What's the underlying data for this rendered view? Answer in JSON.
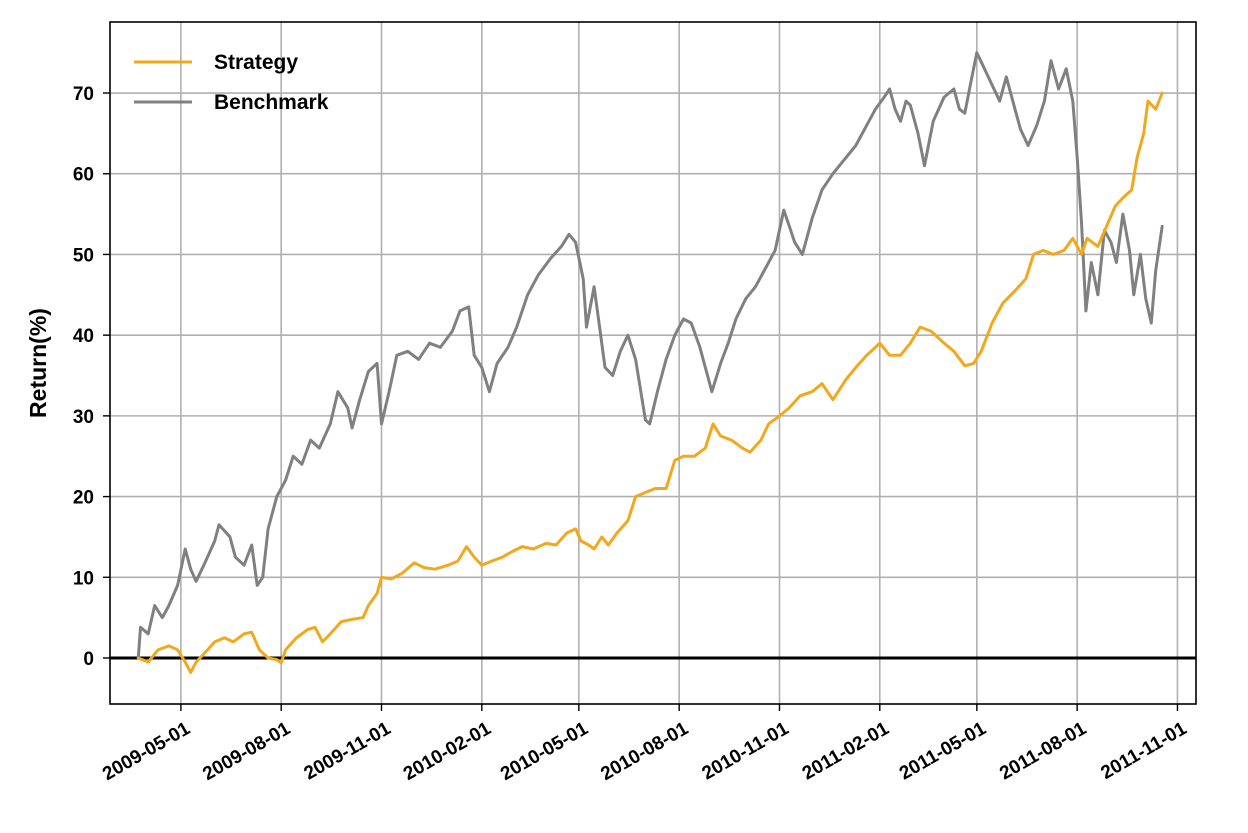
{
  "chart_data": {
    "type": "line",
    "title": "",
    "xlabel": "",
    "ylabel": "Return(%)",
    "grid": true,
    "legend_position": "top-left",
    "x_ticks": [
      "2009-05-01",
      "2009-08-01",
      "2009-11-01",
      "2010-02-01",
      "2010-05-01",
      "2010-08-01",
      "2010-11-01",
      "2011-02-01",
      "2011-05-01",
      "2011-08-01",
      "2011-11-01"
    ],
    "y_ticks": [
      0,
      10,
      20,
      30,
      40,
      50,
      60,
      70
    ],
    "xlim": [
      "2009-02-25",
      "2011-11-18"
    ],
    "ylim": [
      -5.7,
      78.8
    ],
    "reference_line": {
      "y": 0,
      "color": "#000000"
    },
    "series": [
      {
        "name": "Strategy",
        "color": "#f2a81d",
        "points": [
          [
            "2009-03-23",
            0.0
          ],
          [
            "2009-04-01",
            -0.5
          ],
          [
            "2009-04-10",
            1.0
          ],
          [
            "2009-04-20",
            1.5
          ],
          [
            "2009-04-28",
            1.0
          ],
          [
            "2009-05-05",
            -0.5
          ],
          [
            "2009-05-10",
            -1.8
          ],
          [
            "2009-05-15",
            -0.5
          ],
          [
            "2009-05-22",
            0.5
          ],
          [
            "2009-06-01",
            2.0
          ],
          [
            "2009-06-10",
            2.5
          ],
          [
            "2009-06-18",
            2.0
          ],
          [
            "2009-06-28",
            3.0
          ],
          [
            "2009-07-05",
            3.2
          ],
          [
            "2009-07-12",
            1.0
          ],
          [
            "2009-07-20",
            0.0
          ],
          [
            "2009-07-28",
            -0.2
          ],
          [
            "2009-08-01",
            -0.6
          ],
          [
            "2009-08-05",
            1.0
          ],
          [
            "2009-08-15",
            2.5
          ],
          [
            "2009-08-25",
            3.5
          ],
          [
            "2009-09-01",
            3.8
          ],
          [
            "2009-09-08",
            2.0
          ],
          [
            "2009-09-15",
            3.0
          ],
          [
            "2009-09-25",
            4.5
          ],
          [
            "2009-10-05",
            4.8
          ],
          [
            "2009-10-15",
            5.0
          ],
          [
            "2009-10-20",
            6.5
          ],
          [
            "2009-10-28",
            8.0
          ],
          [
            "2009-11-01",
            10.0
          ],
          [
            "2009-11-10",
            9.8
          ],
          [
            "2009-11-20",
            10.5
          ],
          [
            "2009-12-01",
            11.8
          ],
          [
            "2009-12-10",
            11.2
          ],
          [
            "2009-12-20",
            11.0
          ],
          [
            "2010-01-01",
            11.5
          ],
          [
            "2010-01-10",
            12.0
          ],
          [
            "2010-01-18",
            13.8
          ],
          [
            "2010-01-25",
            12.5
          ],
          [
            "2010-02-01",
            11.5
          ],
          [
            "2010-02-10",
            12.0
          ],
          [
            "2010-02-20",
            12.5
          ],
          [
            "2010-03-01",
            13.2
          ],
          [
            "2010-03-10",
            13.8
          ],
          [
            "2010-03-20",
            13.5
          ],
          [
            "2010-04-01",
            14.2
          ],
          [
            "2010-04-10",
            14.0
          ],
          [
            "2010-04-20",
            15.5
          ],
          [
            "2010-04-28",
            16.0
          ],
          [
            "2010-05-03",
            14.5
          ],
          [
            "2010-05-10",
            14.0
          ],
          [
            "2010-05-15",
            13.5
          ],
          [
            "2010-05-22",
            15.0
          ],
          [
            "2010-05-28",
            14.0
          ],
          [
            "2010-06-05",
            15.5
          ],
          [
            "2010-06-15",
            17.0
          ],
          [
            "2010-06-22",
            20.0
          ],
          [
            "2010-07-01",
            20.5
          ],
          [
            "2010-07-10",
            21.0
          ],
          [
            "2010-07-20",
            21.0
          ],
          [
            "2010-07-28",
            24.5
          ],
          [
            "2010-08-05",
            25.0
          ],
          [
            "2010-08-15",
            25.0
          ],
          [
            "2010-08-25",
            26.0
          ],
          [
            "2010-09-01",
            29.0
          ],
          [
            "2010-09-08",
            27.5
          ],
          [
            "2010-09-18",
            27.0
          ],
          [
            "2010-09-28",
            26.0
          ],
          [
            "2010-10-05",
            25.5
          ],
          [
            "2010-10-15",
            27.0
          ],
          [
            "2010-10-22",
            29.0
          ],
          [
            "2010-11-01",
            30.0
          ],
          [
            "2010-11-10",
            31.0
          ],
          [
            "2010-11-20",
            32.5
          ],
          [
            "2010-12-01",
            33.0
          ],
          [
            "2010-12-10",
            34.0
          ],
          [
            "2010-12-20",
            32.0
          ],
          [
            "2011-01-01",
            34.5
          ],
          [
            "2011-01-10",
            36.0
          ],
          [
            "2011-01-20",
            37.5
          ],
          [
            "2011-02-01",
            39.0
          ],
          [
            "2011-02-10",
            37.5
          ],
          [
            "2011-02-20",
            37.5
          ],
          [
            "2011-03-01",
            39.0
          ],
          [
            "2011-03-10",
            41.0
          ],
          [
            "2011-03-20",
            40.5
          ],
          [
            "2011-04-01",
            39.0
          ],
          [
            "2011-04-10",
            38.0
          ],
          [
            "2011-04-20",
            36.2
          ],
          [
            "2011-04-28",
            36.5
          ],
          [
            "2011-05-05",
            38.0
          ],
          [
            "2011-05-15",
            41.5
          ],
          [
            "2011-05-25",
            44.0
          ],
          [
            "2011-06-05",
            45.5
          ],
          [
            "2011-06-15",
            47.0
          ],
          [
            "2011-06-22",
            50.0
          ],
          [
            "2011-07-01",
            50.5
          ],
          [
            "2011-07-10",
            50.0
          ],
          [
            "2011-07-20",
            50.5
          ],
          [
            "2011-07-28",
            52.0
          ],
          [
            "2011-08-05",
            50.0
          ],
          [
            "2011-08-10",
            52.0
          ],
          [
            "2011-08-20",
            51.0
          ],
          [
            "2011-08-28",
            53.5
          ],
          [
            "2011-09-05",
            56.0
          ],
          [
            "2011-09-12",
            57.0
          ],
          [
            "2011-09-20",
            58.0
          ],
          [
            "2011-09-25",
            62.0
          ],
          [
            "2011-10-01",
            65.0
          ],
          [
            "2011-10-05",
            69.0
          ],
          [
            "2011-10-12",
            68.0
          ],
          [
            "2011-10-18",
            70.0
          ]
        ]
      },
      {
        "name": "Benchmark",
        "color": "#808080",
        "points": [
          [
            "2009-03-23",
            0.0
          ],
          [
            "2009-03-25",
            3.8
          ],
          [
            "2009-04-01",
            3.0
          ],
          [
            "2009-04-07",
            6.5
          ],
          [
            "2009-04-14",
            5.0
          ],
          [
            "2009-04-20",
            6.5
          ],
          [
            "2009-04-28",
            9.0
          ],
          [
            "2009-05-05",
            13.5
          ],
          [
            "2009-05-10",
            11.0
          ],
          [
            "2009-05-15",
            9.5
          ],
          [
            "2009-05-22",
            11.5
          ],
          [
            "2009-06-01",
            14.5
          ],
          [
            "2009-06-05",
            16.5
          ],
          [
            "2009-06-15",
            15.0
          ],
          [
            "2009-06-20",
            12.5
          ],
          [
            "2009-06-28",
            11.5
          ],
          [
            "2009-07-05",
            14.0
          ],
          [
            "2009-07-10",
            9.0
          ],
          [
            "2009-07-15",
            10.0
          ],
          [
            "2009-07-20",
            16.0
          ],
          [
            "2009-07-28",
            20.0
          ],
          [
            "2009-08-05",
            22.0
          ],
          [
            "2009-08-12",
            25.0
          ],
          [
            "2009-08-20",
            24.0
          ],
          [
            "2009-08-28",
            27.0
          ],
          [
            "2009-09-05",
            26.0
          ],
          [
            "2009-09-15",
            29.0
          ],
          [
            "2009-09-22",
            33.0
          ],
          [
            "2009-10-01",
            31.0
          ],
          [
            "2009-10-05",
            28.5
          ],
          [
            "2009-10-12",
            32.0
          ],
          [
            "2009-10-20",
            35.5
          ],
          [
            "2009-10-28",
            36.5
          ],
          [
            "2009-11-01",
            29.0
          ],
          [
            "2009-11-08",
            33.0
          ],
          [
            "2009-11-15",
            37.5
          ],
          [
            "2009-11-25",
            38.0
          ],
          [
            "2009-12-05",
            37.0
          ],
          [
            "2009-12-15",
            39.0
          ],
          [
            "2009-12-25",
            38.5
          ],
          [
            "2010-01-05",
            40.5
          ],
          [
            "2010-01-12",
            43.0
          ],
          [
            "2010-01-20",
            43.5
          ],
          [
            "2010-01-25",
            37.5
          ],
          [
            "2010-02-01",
            36.0
          ],
          [
            "2010-02-08",
            33.0
          ],
          [
            "2010-02-15",
            36.5
          ],
          [
            "2010-02-25",
            38.5
          ],
          [
            "2010-03-05",
            41.0
          ],
          [
            "2010-03-15",
            45.0
          ],
          [
            "2010-03-25",
            47.5
          ],
          [
            "2010-04-05",
            49.5
          ],
          [
            "2010-04-15",
            51.0
          ],
          [
            "2010-04-22",
            52.5
          ],
          [
            "2010-04-28",
            51.5
          ],
          [
            "2010-05-05",
            47.0
          ],
          [
            "2010-05-08",
            41.0
          ],
          [
            "2010-05-15",
            46.0
          ],
          [
            "2010-05-20",
            41.0
          ],
          [
            "2010-05-25",
            36.0
          ],
          [
            "2010-06-01",
            35.0
          ],
          [
            "2010-06-08",
            38.0
          ],
          [
            "2010-06-15",
            40.0
          ],
          [
            "2010-06-22",
            37.0
          ],
          [
            "2010-07-01",
            29.5
          ],
          [
            "2010-07-05",
            29.0
          ],
          [
            "2010-07-12",
            33.0
          ],
          [
            "2010-07-20",
            37.0
          ],
          [
            "2010-07-28",
            40.0
          ],
          [
            "2010-08-05",
            42.0
          ],
          [
            "2010-08-12",
            41.5
          ],
          [
            "2010-08-20",
            38.5
          ],
          [
            "2010-08-25",
            36.0
          ],
          [
            "2010-08-31",
            33.0
          ],
          [
            "2010-09-08",
            36.5
          ],
          [
            "2010-09-15",
            39.0
          ],
          [
            "2010-09-22",
            42.0
          ],
          [
            "2010-10-01",
            44.5
          ],
          [
            "2010-10-10",
            46.0
          ],
          [
            "2010-10-18",
            48.0
          ],
          [
            "2010-10-28",
            50.5
          ],
          [
            "2010-11-05",
            55.5
          ],
          [
            "2010-11-10",
            53.5
          ],
          [
            "2010-11-15",
            51.5
          ],
          [
            "2010-11-22",
            50.0
          ],
          [
            "2010-12-01",
            54.5
          ],
          [
            "2010-12-10",
            58.0
          ],
          [
            "2010-12-20",
            60.0
          ],
          [
            "2011-01-01",
            62.0
          ],
          [
            "2011-01-10",
            63.5
          ],
          [
            "2011-01-20",
            66.0
          ],
          [
            "2011-01-28",
            68.0
          ],
          [
            "2011-02-05",
            69.5
          ],
          [
            "2011-02-10",
            70.5
          ],
          [
            "2011-02-15",
            68.0
          ],
          [
            "2011-02-20",
            66.5
          ],
          [
            "2011-02-25",
            69.0
          ],
          [
            "2011-03-01",
            68.5
          ],
          [
            "2011-03-08",
            65.0
          ],
          [
            "2011-03-14",
            61.0
          ],
          [
            "2011-03-22",
            66.5
          ],
          [
            "2011-04-01",
            69.5
          ],
          [
            "2011-04-10",
            70.5
          ],
          [
            "2011-04-15",
            68.0
          ],
          [
            "2011-04-20",
            67.5
          ],
          [
            "2011-04-25",
            71.0
          ],
          [
            "2011-05-01",
            75.0
          ],
          [
            "2011-05-08",
            73.0
          ],
          [
            "2011-05-15",
            71.0
          ],
          [
            "2011-05-22",
            69.0
          ],
          [
            "2011-05-28",
            72.0
          ],
          [
            "2011-06-05",
            68.0
          ],
          [
            "2011-06-10",
            65.5
          ],
          [
            "2011-06-17",
            63.5
          ],
          [
            "2011-06-25",
            66.0
          ],
          [
            "2011-07-02",
            69.0
          ],
          [
            "2011-07-08",
            74.0
          ],
          [
            "2011-07-15",
            70.5
          ],
          [
            "2011-07-22",
            73.0
          ],
          [
            "2011-07-28",
            69.0
          ],
          [
            "2011-08-01",
            62.0
          ],
          [
            "2011-08-05",
            54.0
          ],
          [
            "2011-08-09",
            43.0
          ],
          [
            "2011-08-14",
            49.0
          ],
          [
            "2011-08-20",
            45.0
          ],
          [
            "2011-08-26",
            53.0
          ],
          [
            "2011-09-01",
            51.5
          ],
          [
            "2011-09-06",
            49.0
          ],
          [
            "2011-09-12",
            55.0
          ],
          [
            "2011-09-18",
            50.5
          ],
          [
            "2011-09-22",
            45.0
          ],
          [
            "2011-09-28",
            50.0
          ],
          [
            "2011-10-03",
            44.5
          ],
          [
            "2011-10-08",
            41.5
          ],
          [
            "2011-10-12",
            48.0
          ],
          [
            "2011-10-18",
            53.5
          ]
        ]
      }
    ]
  }
}
